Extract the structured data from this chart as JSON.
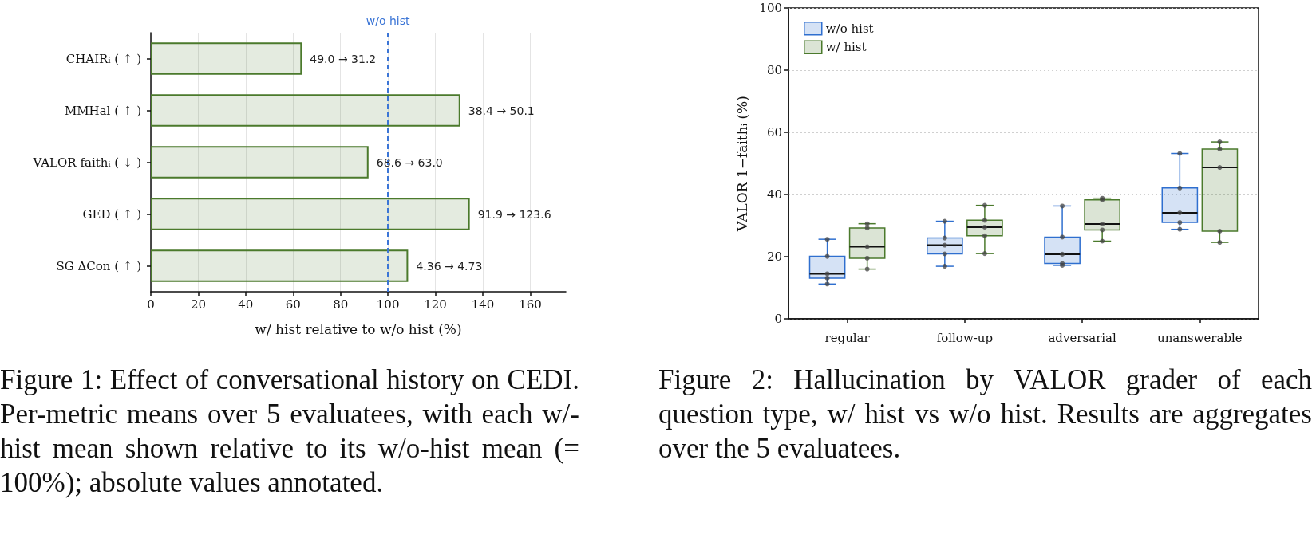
{
  "chart_data": [
    {
      "type": "bar",
      "orientation": "horizontal",
      "categories": [
        "CHAIRᵢ ( ↑ )",
        "MMHal ( ↑ )",
        "VALOR faithᵢ ( ↓ )",
        "GED ( ↑ )",
        "SG ΔCon ( ↑ )"
      ],
      "values": [
        63.7,
        130.5,
        91.8,
        134.5,
        108.5
      ],
      "color": "#4b7a2c",
      "xlabel": "w/ hist relative to w/o hist (%)",
      "xlim": [
        0,
        175
      ],
      "xticks": [
        0,
        20,
        40,
        60,
        80,
        100,
        120,
        140,
        160
      ],
      "grid": "x",
      "ref_lines": [
        {
          "axis": "x",
          "value": 100,
          "label": "w/o hist",
          "color": "#3b75d6",
          "line_style": "dashed"
        }
      ],
      "annotations": [
        {
          "text": "49.0 → 31.2",
          "x": 63.7,
          "y": "CHAIRᵢ ( ↑ )"
        },
        {
          "text": "38.4 → 50.1",
          "x": 130.5,
          "y": "MMHal ( ↑ )"
        },
        {
          "text": "68.6 → 63.0",
          "x": 91.8,
          "y": "VALOR faithᵢ ( ↓ )"
        },
        {
          "text": "91.9 → 123.6",
          "x": 134.5,
          "y": "GED ( ↑ )"
        },
        {
          "text": "4.36 → 4.73",
          "x": 108.5,
          "y": "SG ΔCon ( ↑ )"
        },
        "Figure 1: Effect of conversational history on CEDI. Per-metric means over 5 evaluatees, with each w/-hist mean shown relative to its w/o-hist mean (= 100%); absolute values annotated."
      ]
    },
    {
      "type": "box",
      "categories": [
        "regular",
        "follow-up",
        "adversarial",
        "unanswerable"
      ],
      "ylabel": "VALOR 1−faithᵢ (%)",
      "ylim": [
        0,
        100
      ],
      "yticks": [
        0,
        20,
        40,
        60,
        80,
        100
      ],
      "grid": "y",
      "legend": "top left",
      "marker": "circle",
      "series": [
        {
          "name": "w/o hist",
          "color": "#2f6fcf",
          "boxes": [
            {
              "low": 11.2,
              "q1": 13.1,
              "median": 14.5,
              "q3": 20.1,
              "high": 25.6
            },
            {
              "low": 16.9,
              "q1": 20.9,
              "median": 23.7,
              "q3": 26.0,
              "high": 31.4
            },
            {
              "low": 17.2,
              "q1": 17.8,
              "median": 20.8,
              "q3": 26.3,
              "high": 36.3
            },
            {
              "low": 28.8,
              "q1": 31.0,
              "median": 34.1,
              "q3": 42.1,
              "high": 53.2
            }
          ]
        },
        {
          "name": "w/ hist",
          "color": "#4b7a2c",
          "boxes": [
            {
              "low": 16.0,
              "q1": 19.5,
              "median": 23.2,
              "q3": 29.2,
              "high": 30.6
            },
            {
              "low": 21.0,
              "q1": 26.7,
              "median": 29.5,
              "q3": 31.7,
              "high": 36.5
            },
            {
              "low": 25.0,
              "q1": 28.6,
              "median": 30.5,
              "q3": 38.3,
              "high": 38.8
            },
            {
              "low": 24.6,
              "q1": 28.2,
              "median": 48.7,
              "q3": 54.6,
              "high": 56.9
            }
          ]
        },
        {
          "type": "scatter",
          "color": "#444444",
          "x": [
            "regular",
            "regular",
            "regular",
            "regular",
            "regular",
            "follow-up",
            "follow-up",
            "follow-up",
            "follow-up",
            "follow-up",
            "adversarial",
            "adversarial",
            "adversarial",
            "adversarial",
            "adversarial",
            "unanswerable",
            "unanswerable",
            "unanswerable",
            "unanswerable",
            "unanswerable"
          ],
          "values": [
            11.2,
            13.1,
            14.5,
            20.1,
            25.6,
            16.9,
            20.9,
            23.7,
            26.0,
            31.4,
            17.2,
            17.8,
            20.8,
            26.3,
            36.3,
            28.8,
            31.0,
            34.1,
            42.1,
            53.2
          ]
        },
        {
          "type": "scatter",
          "color": "#444444",
          "x": [
            "regular",
            "regular",
            "regular",
            "regular",
            "regular",
            "follow-up",
            "follow-up",
            "follow-up",
            "follow-up",
            "follow-up",
            "adversarial",
            "adversarial",
            "adversarial",
            "adversarial",
            "adversarial",
            "unanswerable",
            "unanswerable",
            "unanswerable",
            "unanswerable",
            "unanswerable"
          ],
          "values": [
            16.0,
            19.5,
            23.2,
            29.2,
            30.6,
            21.0,
            26.7,
            29.5,
            31.7,
            36.5,
            25.0,
            28.6,
            30.5,
            38.3,
            38.8,
            24.6,
            28.2,
            48.7,
            54.6,
            56.9
          ]
        }
      ],
      "annotations": [
        "Figure 2: Hallucination by VALOR grader of each question type, w/ hist vs w/o hist.  Results are aggregates over the 5 evaluatees."
      ]
    }
  ]
}
